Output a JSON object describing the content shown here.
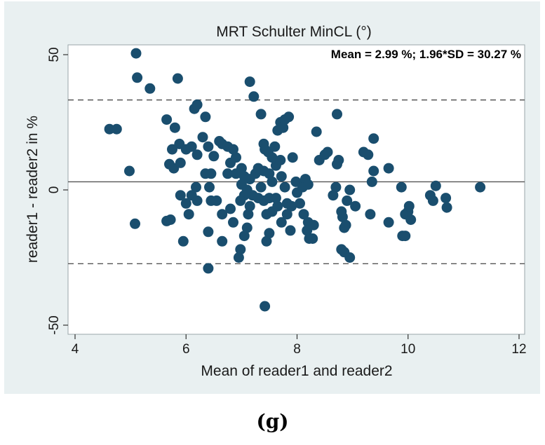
{
  "figure_label": "(g)",
  "colors": {
    "panel_background": "#e9f0f1",
    "plot_background": "#ffffff",
    "marker": "#1a4e6e",
    "line": "#555555"
  },
  "chart_data": {
    "type": "scatter",
    "title": "MRT Schulter MinCL (°)",
    "annotation": "Mean = 2.99 %; 1.96*SD = 30.27 %",
    "xlabel": "Mean of reader1 and reader2",
    "ylabel": "reader1 - reader2 in %",
    "xlim": [
      4,
      12
    ],
    "ylim": [
      -50,
      50
    ],
    "x_ticks": [
      4,
      6,
      8,
      10,
      12
    ],
    "y_ticks": [
      -50,
      0,
      50
    ],
    "grid": false,
    "mean_line": 2.99,
    "upper_limit": 33.26,
    "lower_limit": -27.28,
    "points": [
      [
        5.1,
        50.5
      ],
      [
        5.12,
        41.5
      ],
      [
        5.35,
        37.5
      ],
      [
        5.85,
        41.2
      ],
      [
        7.15,
        40
      ],
      [
        7.22,
        34.5
      ],
      [
        7.35,
        28
      ],
      [
        4.62,
        22.5
      ],
      [
        4.75,
        22.5
      ],
      [
        4.98,
        7
      ],
      [
        5.08,
        -12.5
      ],
      [
        5.65,
        -11.5
      ],
      [
        5.72,
        -11
      ],
      [
        5.95,
        -19
      ],
      [
        5.65,
        26
      ],
      [
        5.8,
        23
      ],
      [
        5.88,
        17
      ],
      [
        5.75,
        15
      ],
      [
        5.7,
        9.5
      ],
      [
        5.78,
        8
      ],
      [
        5.9,
        10
      ],
      [
        6.0,
        15
      ],
      [
        6.1,
        16
      ],
      [
        6.2,
        13
      ],
      [
        6.15,
        30
      ],
      [
        6.2,
        31.5
      ],
      [
        6.35,
        27
      ],
      [
        6.3,
        19.5
      ],
      [
        6.4,
        16
      ],
      [
        6.5,
        12.5
      ],
      [
        6.45,
        6
      ],
      [
        6.35,
        6
      ],
      [
        6.42,
        1
      ],
      [
        6.18,
        1
      ],
      [
        6.1,
        -2
      ],
      [
        5.9,
        -2
      ],
      [
        6.0,
        -5
      ],
      [
        6.2,
        -4
      ],
      [
        6.45,
        -4
      ],
      [
        6.55,
        -4
      ],
      [
        6.05,
        -9
      ],
      [
        6.65,
        -9
      ],
      [
        6.4,
        -15.5
      ],
      [
        6.65,
        -19
      ],
      [
        6.4,
        -29
      ],
      [
        6.8,
        -7
      ],
      [
        6.85,
        -12
      ],
      [
        6.95,
        -25
      ],
      [
        6.98,
        -22
      ],
      [
        7.05,
        -17
      ],
      [
        7.1,
        -14
      ],
      [
        7.12,
        -9
      ],
      [
        7.15,
        -6
      ],
      [
        6.6,
        18
      ],
      [
        6.65,
        17
      ],
      [
        6.75,
        16
      ],
      [
        6.85,
        15
      ],
      [
        6.9,
        12
      ],
      [
        6.8,
        10
      ],
      [
        6.75,
        6
      ],
      [
        6.9,
        6
      ],
      [
        7.0,
        8
      ],
      [
        7.05,
        5
      ],
      [
        7.0,
        2
      ],
      [
        7.1,
        0
      ],
      [
        7.2,
        -2
      ],
      [
        7.3,
        -3
      ],
      [
        7.05,
        -2
      ],
      [
        6.98,
        -4
      ],
      [
        7.15,
        4
      ],
      [
        7.25,
        6
      ],
      [
        7.3,
        8
      ],
      [
        7.4,
        7
      ],
      [
        7.5,
        6
      ],
      [
        7.55,
        3
      ],
      [
        7.35,
        1
      ],
      [
        7.4,
        -4
      ],
      [
        7.5,
        -3
      ],
      [
        7.45,
        -9
      ],
      [
        7.55,
        -8
      ],
      [
        7.5,
        -16
      ],
      [
        7.45,
        -19
      ],
      [
        7.42,
        -43
      ],
      [
        7.4,
        17
      ],
      [
        7.42,
        15
      ],
      [
        7.48,
        14
      ],
      [
        7.55,
        12
      ],
      [
        7.6,
        16
      ],
      [
        7.65,
        22
      ],
      [
        7.7,
        25
      ],
      [
        7.78,
        26
      ],
      [
        7.75,
        23
      ],
      [
        7.85,
        27
      ],
      [
        7.62,
        9
      ],
      [
        7.7,
        11
      ],
      [
        7.72,
        5
      ],
      [
        7.78,
        1
      ],
      [
        7.62,
        -3
      ],
      [
        7.65,
        -6
      ],
      [
        7.72,
        -12
      ],
      [
        7.82,
        -9
      ],
      [
        7.88,
        -15
      ],
      [
        7.82,
        -5
      ],
      [
        7.9,
        -6
      ],
      [
        7.98,
        3
      ],
      [
        8.0,
        -1
      ],
      [
        8.05,
        -5
      ],
      [
        8.1,
        2
      ],
      [
        8.12,
        -9
      ],
      [
        8.2,
        -12
      ],
      [
        8.18,
        -15
      ],
      [
        8.22,
        -18
      ],
      [
        8.28,
        -18
      ],
      [
        8.3,
        -13
      ],
      [
        7.92,
        12
      ],
      [
        8.1,
        1
      ],
      [
        8.15,
        4
      ],
      [
        8.2,
        2
      ],
      [
        8.35,
        21.5
      ],
      [
        8.4,
        11
      ],
      [
        8.5,
        13
      ],
      [
        8.55,
        14
      ],
      [
        8.65,
        -2
      ],
      [
        8.7,
        1
      ],
      [
        8.72,
        9.5
      ],
      [
        8.75,
        11
      ],
      [
        8.72,
        28
      ],
      [
        8.8,
        -8
      ],
      [
        8.82,
        -10
      ],
      [
        8.85,
        -14
      ],
      [
        8.88,
        -13
      ],
      [
        8.8,
        -22
      ],
      [
        8.85,
        -23
      ],
      [
        8.95,
        -25
      ],
      [
        8.9,
        -4
      ],
      [
        8.95,
        0
      ],
      [
        9.05,
        -6
      ],
      [
        9.2,
        14
      ],
      [
        9.28,
        13
      ],
      [
        9.35,
        3
      ],
      [
        9.38,
        7
      ],
      [
        9.38,
        19
      ],
      [
        9.32,
        -9
      ],
      [
        9.65,
        8
      ],
      [
        9.65,
        -12
      ],
      [
        9.88,
        1
      ],
      [
        9.9,
        -17
      ],
      [
        9.95,
        -17
      ],
      [
        9.95,
        -9
      ],
      [
        10.0,
        -8
      ],
      [
        10.02,
        -6
      ],
      [
        10.05,
        -11
      ],
      [
        10.4,
        -2
      ],
      [
        10.45,
        -4
      ],
      [
        10.5,
        1.5
      ],
      [
        10.68,
        -3
      ],
      [
        10.7,
        -6.5
      ],
      [
        11.3,
        1
      ]
    ]
  }
}
